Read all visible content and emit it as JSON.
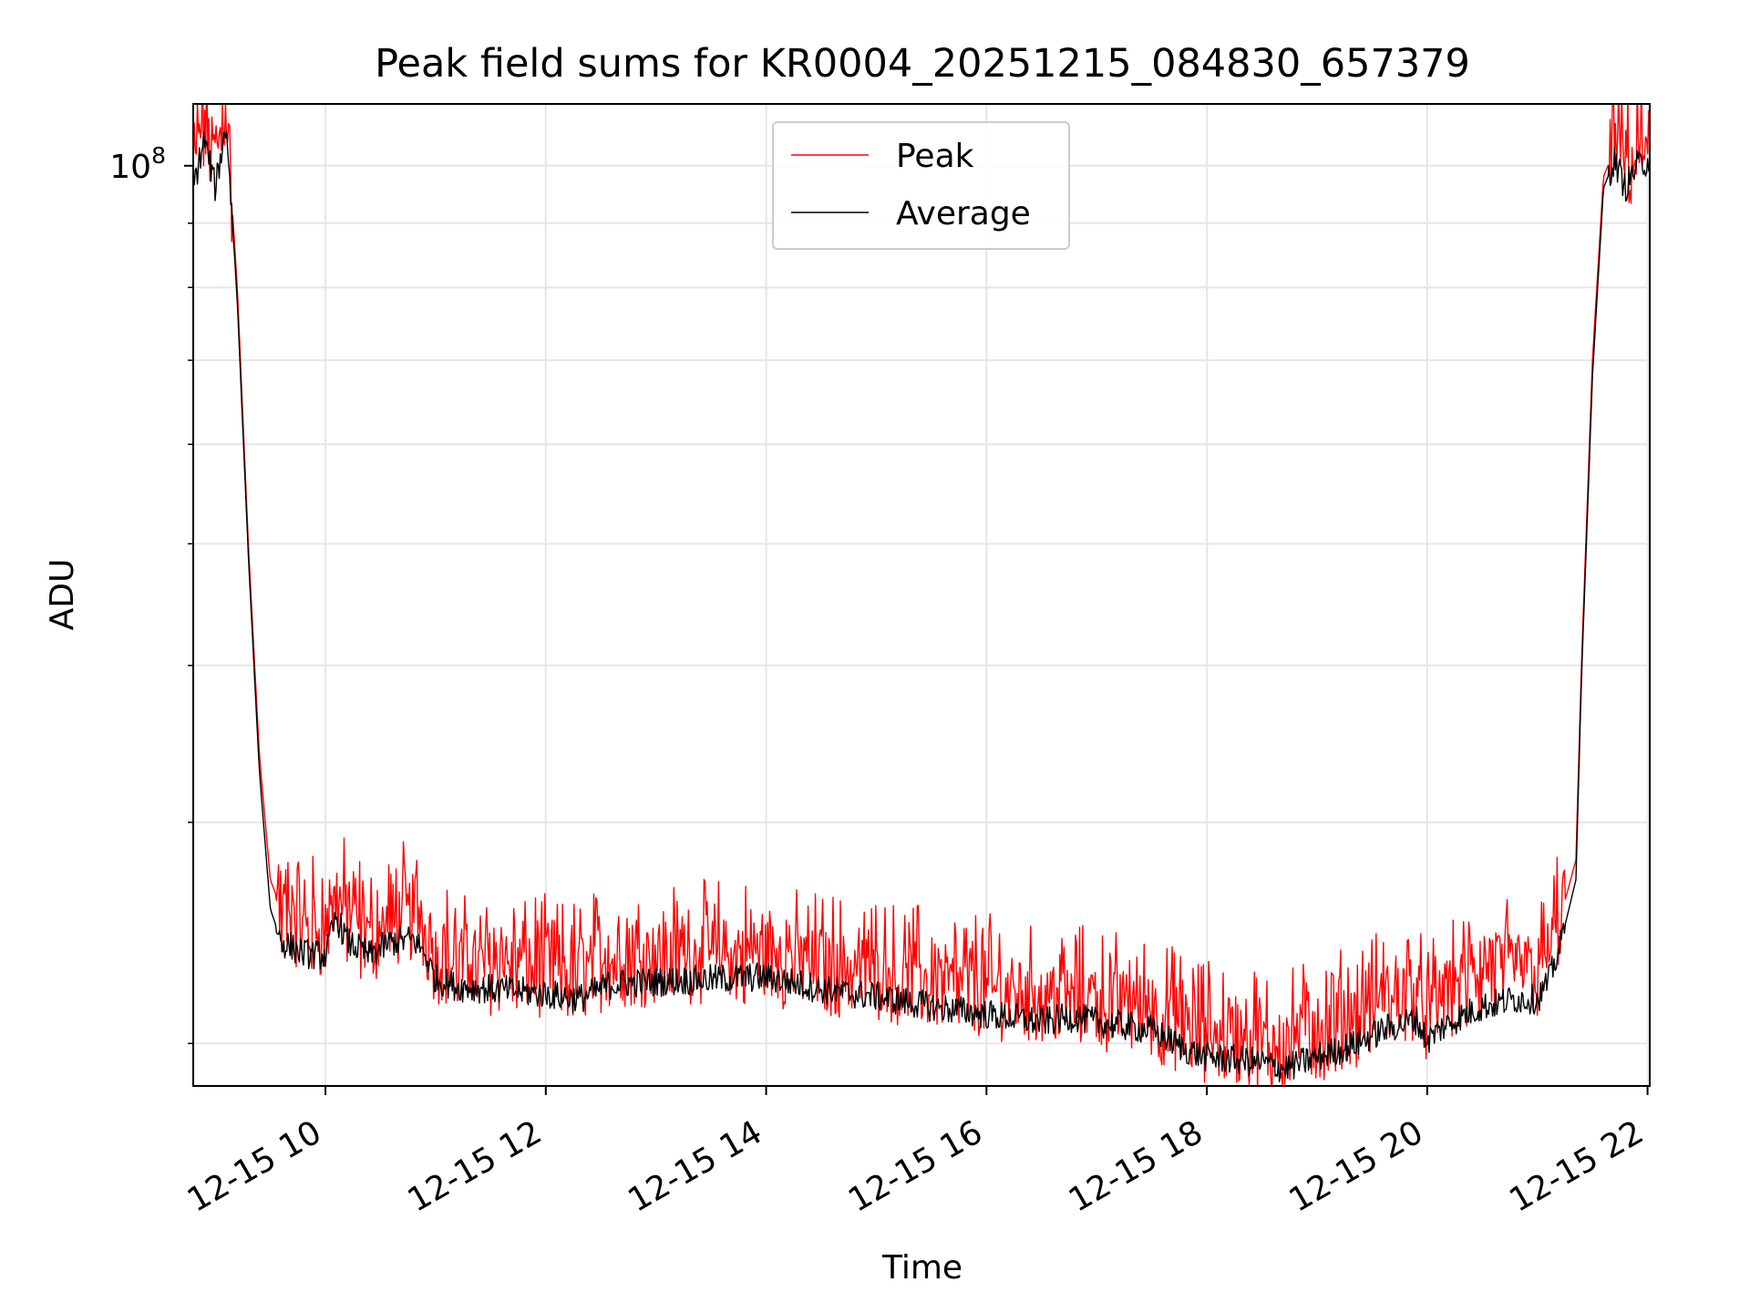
{
  "chart_data": {
    "type": "line",
    "title": "Peak field sums for KR0004_20251215_084830_657379",
    "xlabel": "Time",
    "ylabel": "ADU",
    "yscale": "log",
    "grid": true,
    "legend_position": "top-center",
    "xlim": [
      8.8,
      22.02
    ],
    "ylim": [
      18500000,
      112000000
    ],
    "x_ticks": [
      {
        "value": 10,
        "label": "12-15 10"
      },
      {
        "value": 12,
        "label": "12-15 12"
      },
      {
        "value": 14,
        "label": "12-15 14"
      },
      {
        "value": 16,
        "label": "12-15 16"
      },
      {
        "value": 18,
        "label": "12-15 18"
      },
      {
        "value": 20,
        "label": "12-15 20"
      },
      {
        "value": 22,
        "label": "12-15 22"
      }
    ],
    "y_major_tick": {
      "value": 100000000,
      "label_base": "10",
      "label_exp": "8"
    },
    "y_minor_ticks": [
      20000000,
      30000000,
      40000000,
      50000000,
      60000000,
      70000000,
      80000000,
      90000000
    ],
    "x_unit": "hour of 2025-12-15",
    "series": [
      {
        "name": "Peak",
        "color": "#ff0000",
        "x": [
          8.8,
          8.9,
          9.0,
          9.1,
          9.2,
          9.3,
          9.4,
          9.5,
          9.6,
          9.8,
          10.0,
          10.1,
          10.2,
          10.4,
          10.6,
          10.8,
          10.9,
          11.0,
          11.2,
          11.5,
          12.0,
          12.3,
          12.6,
          13.0,
          13.5,
          14.0,
          14.3,
          14.6,
          15.0,
          15.5,
          16.0,
          16.5,
          16.8,
          17.0,
          17.5,
          17.8,
          18.0,
          18.3,
          18.5,
          18.7,
          19.0,
          19.3,
          19.6,
          19.9,
          20.0,
          20.1,
          20.3,
          20.5,
          20.8,
          21.0,
          21.1,
          21.2,
          21.35,
          21.4,
          21.5,
          21.6,
          21.7,
          21.8,
          21.9,
          22.02
        ],
        "values": [
          98000000,
          107000000,
          99000000,
          110000000,
          80000000,
          50000000,
          34000000,
          27000000,
          25600000,
          24600000,
          24100000,
          26200000,
          25000000,
          23900000,
          24800000,
          25200000,
          24300000,
          23300000,
          22900000,
          22800000,
          22700000,
          22400000,
          23200000,
          23100000,
          23300000,
          23300000,
          22900000,
          22700000,
          22500000,
          22200000,
          21900000,
          21300000,
          21600000,
          21300000,
          21000000,
          20400000,
          20100000,
          20100000,
          19900000,
          19700000,
          20200000,
          20600000,
          21400000,
          21600000,
          20700000,
          21300000,
          21900000,
          22500000,
          22600000,
          22500000,
          23300000,
          25000000,
          28000000,
          40000000,
          70000000,
          98000000,
          103000000,
          98000000,
          102000000,
          103000000
        ]
      },
      {
        "name": "Average",
        "color": "#000000",
        "x": [
          8.8,
          8.9,
          9.0,
          9.1,
          9.2,
          9.3,
          9.4,
          9.5,
          9.6,
          9.8,
          10.0,
          10.1,
          10.2,
          10.4,
          10.6,
          10.8,
          10.9,
          11.0,
          11.2,
          11.5,
          12.0,
          12.3,
          12.6,
          13.0,
          13.5,
          14.0,
          14.3,
          14.6,
          15.0,
          15.5,
          16.0,
          16.5,
          16.8,
          17.0,
          17.5,
          17.8,
          18.0,
          18.3,
          18.5,
          18.7,
          19.0,
          19.3,
          19.6,
          19.9,
          20.0,
          20.1,
          20.3,
          20.5,
          20.8,
          21.0,
          21.1,
          21.2,
          21.35,
          21.4,
          21.5,
          21.6,
          21.7,
          21.8,
          21.9,
          22.02
        ],
        "values": [
          96000000,
          105000000,
          96000000,
          108000000,
          78000000,
          49000000,
          33000000,
          25600000,
          24100000,
          23600000,
          23500000,
          25200000,
          24100000,
          23500000,
          24100000,
          24200000,
          23600000,
          22500000,
          22200000,
          22100000,
          21900000,
          21700000,
          22300000,
          22400000,
          22500000,
          22600000,
          22300000,
          22000000,
          21800000,
          21400000,
          21100000,
          20800000,
          21000000,
          20800000,
          20500000,
          19800000,
          19500000,
          19400000,
          19300000,
          19100000,
          19500000,
          19900000,
          20500000,
          20900000,
          20100000,
          20500000,
          21000000,
          21400000,
          21700000,
          21700000,
          22400000,
          23800000,
          27000000,
          39000000,
          68000000,
          96000000,
          101000000,
          96000000,
          100000000,
          101000000
        ]
      }
    ]
  }
}
